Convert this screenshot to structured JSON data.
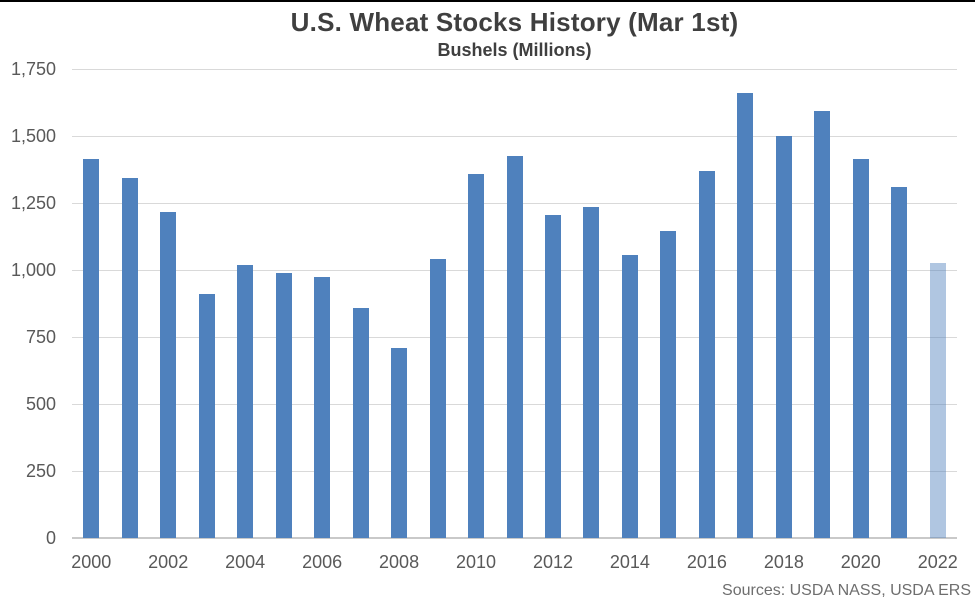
{
  "frame": {
    "background": "#ffffff",
    "top_border_color": "#000000"
  },
  "footer": {
    "source": "Sources: USDA NASS, USDA ERS"
  },
  "colors": {
    "bar": "#4F81BD",
    "last_bar": "rgba(79,129,189,0.45)",
    "gridline": "#D9D9D9",
    "axis_line": "#C9C9C9",
    "title_text": "#3F3F3F",
    "tick_text": "#595959",
    "source_text": "#6E6E6E"
  },
  "chart_data": {
    "type": "bar",
    "title": "U.S. Wheat Stocks History (Mar 1st)",
    "subtitle": "Bushels (Millions)",
    "ylabel": "Bushels (Millions)",
    "xlabel": "",
    "categories": [
      "2000",
      "2001",
      "2002",
      "2003",
      "2004",
      "2005",
      "2006",
      "2007",
      "2008",
      "2009",
      "2010",
      "2011",
      "2012",
      "2013",
      "2014",
      "2015",
      "2016",
      "2017",
      "2018",
      "2019",
      "2020",
      "2021",
      "2022"
    ],
    "values": [
      1415,
      1345,
      1215,
      910,
      1020,
      990,
      975,
      860,
      710,
      1040,
      1360,
      1425,
      1205,
      1235,
      1055,
      1145,
      1370,
      1660,
      1500,
      1595,
      1415,
      1310,
      1025
    ],
    "ylim": [
      0,
      1750
    ],
    "ytick_step": 250,
    "ytick_labels": [
      "0",
      "250",
      "500",
      "750",
      "1,000",
      "1,250",
      "1,500",
      "1,750"
    ],
    "xtick_labels_shown": [
      "2000",
      "2002",
      "2004",
      "2006",
      "2008",
      "2010",
      "2012",
      "2014",
      "2016",
      "2018",
      "2020",
      "2022"
    ],
    "grid": true,
    "legend": "none",
    "bar_color": "#4F81BD",
    "last_bar_color_note": "2022 bar rendered in lighter semi-transparent blue (estimate/projection highlight)",
    "source": "Sources: USDA NASS, USDA ERS"
  }
}
